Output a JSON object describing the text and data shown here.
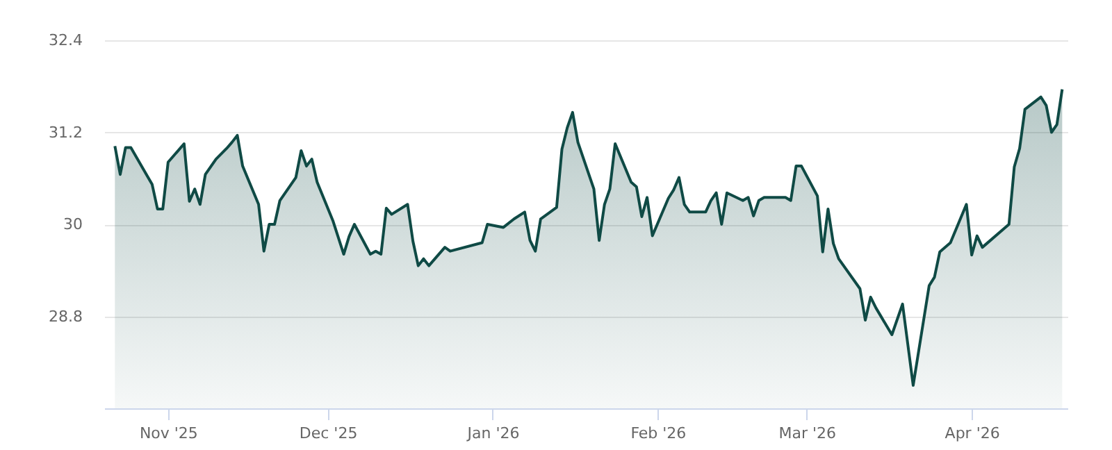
{
  "chart_data": {
    "type": "area",
    "x": [
      "2025-10-22",
      "2025-10-23",
      "2025-10-24",
      "2025-10-25",
      "2025-10-29",
      "2025-10-30",
      "2025-10-31",
      "2025-11-01",
      "2025-11-04",
      "2025-11-05",
      "2025-11-06",
      "2025-11-07",
      "2025-11-08",
      "2025-11-10",
      "2025-11-12",
      "2025-11-13",
      "2025-11-14",
      "2025-11-15",
      "2025-11-18",
      "2025-11-19",
      "2025-11-20",
      "2025-11-21",
      "2025-11-22",
      "2025-11-25",
      "2025-11-26",
      "2025-11-27",
      "2025-11-28",
      "2025-11-29",
      "2025-12-02",
      "2025-12-04",
      "2025-12-05",
      "2025-12-06",
      "2025-12-09",
      "2025-12-10",
      "2025-12-11",
      "2025-12-12",
      "2025-12-13",
      "2025-12-16",
      "2025-12-17",
      "2025-12-18",
      "2025-12-19",
      "2025-12-20",
      "2025-12-23",
      "2025-12-24",
      "2025-12-30",
      "2025-12-31",
      "2026-01-03",
      "2026-01-05",
      "2026-01-07",
      "2026-01-08",
      "2026-01-09",
      "2026-01-10",
      "2026-01-13",
      "2026-01-14",
      "2026-01-15",
      "2026-01-16",
      "2026-01-17",
      "2026-01-20",
      "2026-01-21",
      "2026-01-22",
      "2026-01-23",
      "2026-01-24",
      "2026-01-27",
      "2026-01-28",
      "2026-01-29",
      "2026-01-30",
      "2026-01-31",
      "2026-02-03",
      "2026-02-04",
      "2026-02-05",
      "2026-02-06",
      "2026-02-07",
      "2026-02-10",
      "2026-02-11",
      "2026-02-12",
      "2026-02-13",
      "2026-02-14",
      "2026-02-17",
      "2026-02-18",
      "2026-02-19",
      "2026-02-20",
      "2026-02-21",
      "2026-02-25",
      "2026-02-26",
      "2026-02-27",
      "2026-02-28",
      "2026-03-03",
      "2026-03-04",
      "2026-03-05",
      "2026-03-06",
      "2026-03-07",
      "2026-03-11",
      "2026-03-12",
      "2026-03-13",
      "2026-03-14",
      "2026-03-17",
      "2026-03-19",
      "2026-03-21",
      "2026-03-24",
      "2026-03-25",
      "2026-03-26",
      "2026-03-28",
      "2026-03-31",
      "2026-04-01",
      "2026-04-02",
      "2026-04-03",
      "2026-04-08",
      "2026-04-09",
      "2026-04-10",
      "2026-04-11",
      "2026-04-14",
      "2026-04-15",
      "2026-04-16",
      "2026-04-17",
      "2026-04-18"
    ],
    "series": [
      {
        "color": "#0f4a45",
        "values": [
          31.02,
          30.65,
          31.0,
          31.0,
          30.52,
          30.2,
          30.2,
          30.81,
          31.05,
          30.3,
          30.46,
          30.26,
          30.65,
          30.85,
          30.99,
          31.07,
          31.16,
          30.76,
          30.26,
          29.65,
          30.0,
          30.0,
          30.31,
          30.61,
          30.96,
          30.76,
          30.85,
          30.55,
          30.04,
          29.61,
          29.84,
          30.0,
          29.61,
          29.65,
          29.61,
          30.21,
          30.13,
          30.26,
          29.78,
          29.46,
          29.55,
          29.46,
          29.7,
          29.65,
          29.76,
          30.0,
          29.96,
          30.07,
          30.16,
          29.79,
          29.65,
          30.07,
          30.22,
          30.98,
          31.26,
          31.46,
          31.07,
          30.46,
          29.79,
          30.26,
          30.46,
          31.05,
          30.55,
          30.49,
          30.1,
          30.35,
          29.85,
          30.34,
          30.45,
          30.61,
          30.26,
          30.16,
          30.16,
          30.31,
          30.41,
          30.0,
          30.41,
          30.31,
          30.35,
          30.11,
          30.31,
          30.35,
          30.35,
          30.31,
          30.76,
          30.76,
          30.37,
          29.64,
          30.2,
          29.75,
          29.55,
          29.16,
          28.75,
          29.05,
          28.91,
          28.56,
          28.96,
          27.9,
          29.2,
          29.31,
          29.64,
          29.76,
          30.26,
          29.6,
          29.85,
          29.7,
          30.0,
          30.75,
          30.99,
          31.5,
          31.66,
          31.55,
          31.2,
          31.3,
          31.76
        ]
      }
    ],
    "xlim": [
      "2025-10-20",
      "2026-04-19"
    ],
    "xticks": [
      {
        "value": "2025-11-01",
        "label": "Nov '25"
      },
      {
        "value": "2025-12-01",
        "label": "Dec '25"
      },
      {
        "value": "2026-01-01",
        "label": "Jan '26"
      },
      {
        "value": "2026-02-01",
        "label": "Feb '26"
      },
      {
        "value": "2026-03-01",
        "label": "Mar '26"
      },
      {
        "value": "2026-04-01",
        "label": "Apr '26"
      }
    ],
    "ylim": [
      27.6,
      32.4
    ],
    "yticks": [
      28.8,
      30,
      31.2,
      32.4
    ],
    "grid": "y"
  }
}
